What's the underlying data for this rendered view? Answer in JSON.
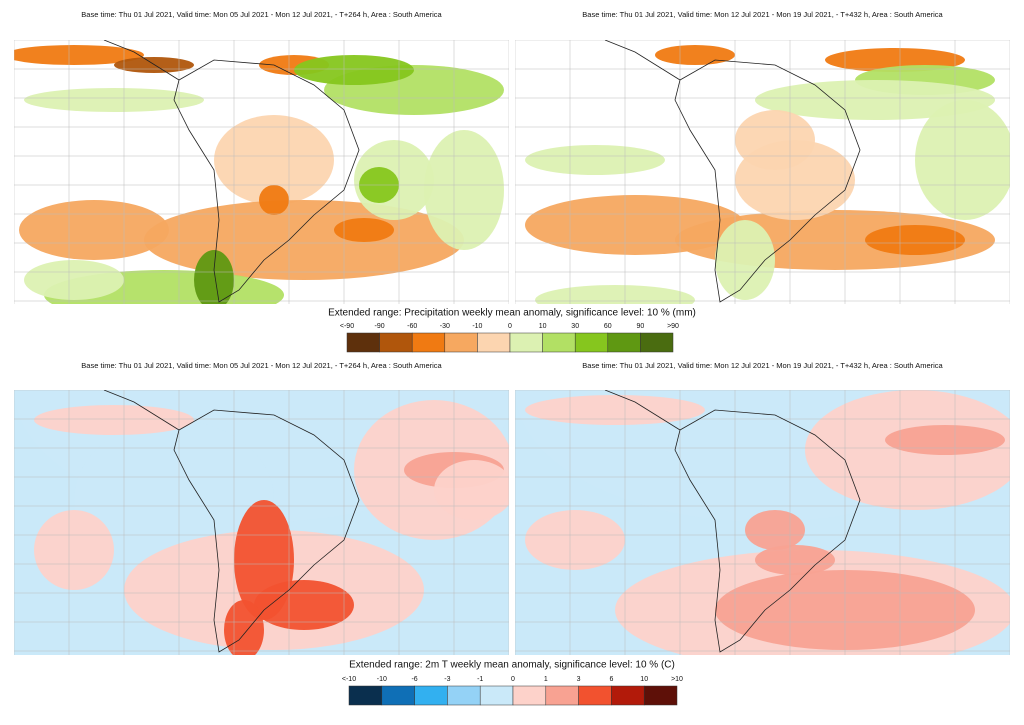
{
  "sections": [
    {
      "panels": [
        {
          "header": "Base time: Thu 01 Jul 2021, Valid time: Mon 05 Jul 2021 - Mon 12 Jul 2021, - T+264 h, Area : South America"
        },
        {
          "header": "Base time: Thu 01 Jul 2021, Valid time: Mon 12 Jul 2021 - Mon 19 Jul 2021, - T+432 h, Area : South America"
        }
      ],
      "colorbar": {
        "title": "Extended range: Precipitation weekly mean anomaly, significance level: 10 % (mm)",
        "labels": [
          "<-90",
          "-90",
          "-60",
          "-30",
          "-10",
          "0",
          "10",
          "30",
          "60",
          "90",
          ">90"
        ],
        "colors": [
          "#5e300c",
          "#b0560c",
          "#f07a12",
          "#f6a860",
          "#fcd5b0",
          "#dcf1b2",
          "#b2e064",
          "#86c61e",
          "#5f9812",
          "#4a6c10"
        ]
      }
    },
    {
      "panels": [
        {
          "header": "Base time: Thu 01 Jul 2021, Valid time: Mon 05 Jul 2021 - Mon 12 Jul 2021, - T+264 h, Area : South America"
        },
        {
          "header": "Base time: Thu 01 Jul 2021, Valid time: Mon 12 Jul 2021 - Mon 19 Jul 2021, - T+432 h, Area : South America"
        }
      ],
      "colorbar": {
        "title": "Extended range: 2m T weekly mean anomaly, significance level: 10 % (C)",
        "labels": [
          "<-10",
          "-10",
          "-6",
          "-3",
          "-1",
          "0",
          "1",
          "3",
          "6",
          "10",
          ">10"
        ],
        "colors": [
          "#0a2f4e",
          "#0f6fb6",
          "#32b0f0",
          "#94d2f6",
          "#cae9f9",
          "#fdd2ca",
          "#f8a292",
          "#f2522f",
          "#b21a0a",
          "#5e1008"
        ]
      }
    }
  ]
}
